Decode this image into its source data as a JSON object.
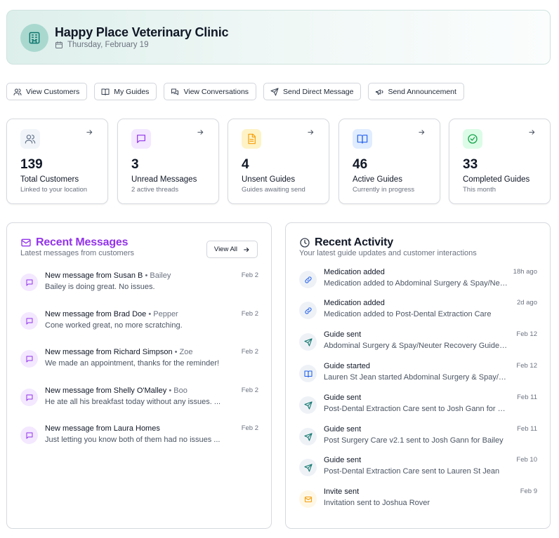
{
  "header": {
    "clinic_name": "Happy Place Veterinary Clinic",
    "date": "Thursday, February 19"
  },
  "actions": [
    {
      "label": "View Customers",
      "icon": "users-icon"
    },
    {
      "label": "My Guides",
      "icon": "book-icon"
    },
    {
      "label": "View Conversations",
      "icon": "conversations-icon"
    },
    {
      "label": "Send Direct Message",
      "icon": "send-icon"
    },
    {
      "label": "Send Announcement",
      "icon": "megaphone-icon"
    }
  ],
  "stats": [
    {
      "value": "139",
      "label": "Total Customers",
      "sub": "Linked to your location",
      "icon": "users-icon",
      "color": "#64748b",
      "bg": "#f1f5f9"
    },
    {
      "value": "3",
      "label": "Unread Messages",
      "sub": "2 active threads",
      "icon": "message-icon",
      "color": "#9333ea",
      "bg": "#f3e8ff"
    },
    {
      "value": "4",
      "label": "Unsent Guides",
      "sub": "Guides awaiting send",
      "icon": "document-icon",
      "color": "#f59e0b",
      "bg": "#fef3c7"
    },
    {
      "value": "46",
      "label": "Active Guides",
      "sub": "Currently in progress",
      "icon": "book-icon",
      "color": "#2563eb",
      "bg": "#e0ecff"
    },
    {
      "value": "33",
      "label": "Completed Guides",
      "sub": "This month",
      "icon": "check-circle-icon",
      "color": "#16a34a",
      "bg": "#dcfce7"
    }
  ],
  "messages_panel": {
    "title": "Recent Messages",
    "subtitle": "Latest messages from customers",
    "view_all": "View All",
    "accent": "#9333ea",
    "items": [
      {
        "from": "New message from Susan B",
        "pet": "Bailey",
        "text": "Bailey is doing great. No issues.",
        "date": "Feb 2"
      },
      {
        "from": "New message from Brad Doe",
        "pet": "Pepper",
        "text": "Cone worked great, no more scratching.",
        "date": "Feb 2"
      },
      {
        "from": "New message from Richard Simpson",
        "pet": "Zoe",
        "text": "We made an appointment, thanks for the reminder!",
        "date": "Feb 2"
      },
      {
        "from": "New message from Shelly O'Malley",
        "pet": "Boo",
        "text": "He ate all his breakfast today without any issues. ...",
        "date": "Feb 2"
      },
      {
        "from": "New message from Laura Homes",
        "pet": "",
        "text": "Just letting you know both of them had no issues ...",
        "date": "Feb 2"
      }
    ]
  },
  "activity_panel": {
    "title": "Recent Activity",
    "subtitle": "Your latest guide updates and customer interactions",
    "items": [
      {
        "title": "Medication added",
        "text": "Medication added to Abdominal Surgery & Spay/Neuter Recovery",
        "date": "18h ago",
        "icon": "link-icon",
        "color": "#2563eb"
      },
      {
        "title": "Medication added",
        "text": "Medication added to Post-Dental Extraction Care",
        "date": "2d ago",
        "icon": "link-icon",
        "color": "#2563eb"
      },
      {
        "title": "Guide sent",
        "text": "Abdominal Surgery & Spay/Neuter Recovery Guide sent",
        "date": "Feb 12",
        "icon": "send-icon",
        "color": "#0f766e"
      },
      {
        "title": "Guide started",
        "text": "Lauren St Jean started Abdominal Surgery & Spay/Neuter",
        "date": "Feb 12",
        "icon": "book-icon",
        "color": "#2563eb"
      },
      {
        "title": "Guide sent",
        "text": "Post-Dental Extraction Care sent to Josh Gann for Bailey",
        "date": "Feb 11",
        "icon": "send-icon",
        "color": "#0f766e"
      },
      {
        "title": "Guide sent",
        "text": "Post Surgery Care v2.1 sent to Josh Gann for Bailey",
        "date": "Feb 11",
        "icon": "send-icon",
        "color": "#0f766e"
      },
      {
        "title": "Guide sent",
        "text": "Post-Dental Extraction Care sent to Lauren St Jean",
        "date": "Feb 10",
        "icon": "send-icon",
        "color": "#0f766e"
      },
      {
        "title": "Invite sent",
        "text": "Invitation sent to Joshua Rover",
        "date": "Feb 9",
        "icon": "mail-icon",
        "color": "#f59e0b"
      }
    ]
  }
}
